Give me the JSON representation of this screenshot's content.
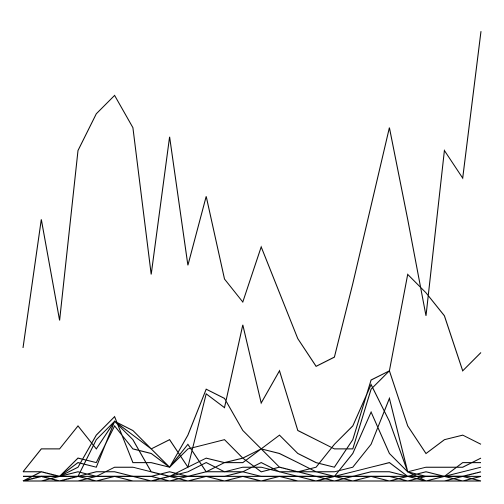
{
  "chart_data": {
    "type": "line",
    "title": "",
    "xlabel": "",
    "ylabel": "",
    "grid": false,
    "legend": "none",
    "line_color": "#000000",
    "background": "#ffffff",
    "x": [
      0,
      1,
      2,
      3,
      4,
      5,
      6,
      7,
      8,
      9,
      10,
      11,
      12,
      13,
      14,
      15,
      16,
      17,
      18,
      19,
      20,
      21,
      22,
      23,
      24,
      25
    ],
    "xlim": [
      0,
      25
    ],
    "ylim": [
      0,
      100
    ],
    "series": [
      {
        "values": [
          29,
          57,
          35,
          72,
          80,
          84,
          77,
          45,
          75,
          47,
          62,
          44,
          39,
          51,
          41,
          31,
          25,
          27,
          43,
          60,
          77,
          57,
          36,
          72,
          66,
          98
        ]
      },
      {
        "values": [
          2,
          7,
          7,
          12,
          7,
          13,
          11,
          7,
          9,
          3,
          19,
          16,
          34,
          17,
          24,
          11,
          9,
          7,
          7,
          20,
          24,
          45,
          41,
          36,
          24,
          28
        ]
      },
      {
        "values": [
          2,
          2,
          1,
          3,
          10,
          14,
          4,
          4,
          3,
          10,
          20,
          18,
          11,
          7,
          10,
          6,
          4,
          3,
          9,
          22,
          24,
          12,
          6,
          9,
          10,
          8
        ]
      },
      {
        "values": [
          0,
          1,
          1,
          4,
          3,
          13,
          10,
          7,
          3,
          8,
          2,
          4,
          5,
          7,
          3,
          2,
          3,
          8,
          12,
          21,
          13,
          2,
          3,
          3,
          3,
          5
        ]
      },
      {
        "values": [
          1,
          1,
          1,
          5,
          4,
          12,
          7,
          6,
          3,
          7,
          8,
          9,
          5,
          2,
          3,
          2,
          2,
          2,
          3,
          8,
          18,
          2,
          1,
          1,
          4,
          4
        ]
      },
      {
        "values": [
          0,
          2,
          1,
          1,
          9,
          13,
          9,
          2,
          1,
          3,
          5,
          4,
          4,
          7,
          6,
          4,
          2,
          1,
          6,
          15,
          6,
          2,
          0,
          1,
          1,
          2
        ]
      },
      {
        "values": [
          0,
          1,
          1,
          2,
          1,
          3,
          3,
          2,
          1,
          2,
          4,
          2,
          2,
          4,
          2,
          1,
          1,
          1,
          2,
          3,
          4,
          1,
          1,
          1,
          2,
          3
        ]
      },
      {
        "values": [
          1,
          1,
          0,
          1,
          2,
          2,
          1,
          1,
          2,
          1,
          2,
          2,
          3,
          3,
          2,
          2,
          1,
          1,
          1,
          2,
          2,
          1,
          2,
          1,
          1,
          2
        ]
      },
      {
        "values": [
          0,
          0,
          1,
          1,
          1,
          1,
          1,
          0,
          1,
          1,
          1,
          1,
          2,
          1,
          1,
          1,
          0,
          1,
          1,
          1,
          1,
          1,
          1,
          1,
          1,
          1
        ]
      },
      {
        "values": [
          0,
          1,
          0,
          0,
          1,
          1,
          1,
          1,
          0,
          1,
          1,
          1,
          1,
          1,
          1,
          1,
          1,
          0,
          1,
          1,
          1,
          0,
          1,
          1,
          0,
          1
        ]
      },
      {
        "values": [
          0,
          0,
          0,
          1,
          0,
          1,
          0,
          0,
          1,
          0,
          1,
          0,
          1,
          0,
          1,
          0,
          0,
          1,
          0,
          1,
          0,
          1,
          0,
          0,
          1,
          0
        ]
      },
      {
        "values": [
          0,
          0,
          0,
          0,
          0,
          0,
          0,
          0,
          0,
          0,
          0,
          0,
          0,
          0,
          0,
          0,
          0,
          0,
          0,
          0,
          0,
          0,
          0,
          0,
          0,
          0
        ]
      }
    ]
  }
}
